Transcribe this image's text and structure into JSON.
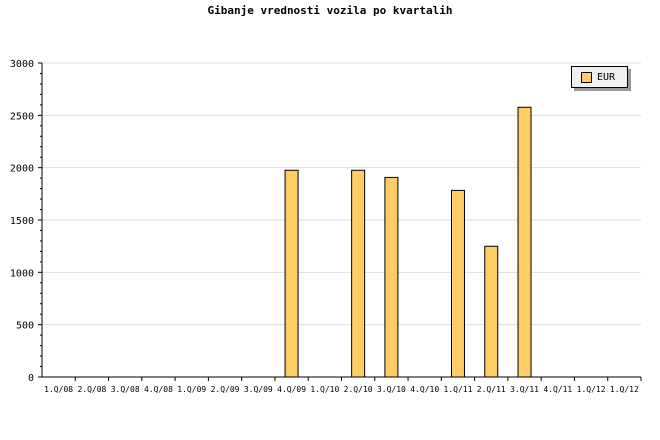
{
  "chart_data": {
    "type": "bar",
    "title": "Gibanje vrednosti vozila po kvartalih",
    "categories": [
      "1.Q/08",
      "2.Q/08",
      "3.Q/08",
      "4.Q/08",
      "1.Q/09",
      "2.Q/09",
      "3.Q/09",
      "4.Q/09",
      "1.Q/10",
      "2.Q/10",
      "3.Q/10",
      "4.Q/10",
      "1.Q/11",
      "2.Q/11",
      "3.Q/11",
      "4.Q/11",
      "1.Q/12",
      "1.Q/12"
    ],
    "series": [
      {
        "name": "EUR",
        "color": "#ffcc66",
        "values": [
          0,
          0,
          0,
          0,
          0,
          0,
          0,
          1975,
          0,
          1975,
          1907,
          0,
          1783,
          1249,
          2577,
          0,
          0,
          0
        ]
      }
    ],
    "ylim": [
      0,
      3000
    ],
    "yticks": [
      0,
      500,
      1000,
      1500,
      2000,
      2500,
      3000
    ],
    "grid": true,
    "legend": "top-right",
    "xlabel": "",
    "ylabel": ""
  }
}
